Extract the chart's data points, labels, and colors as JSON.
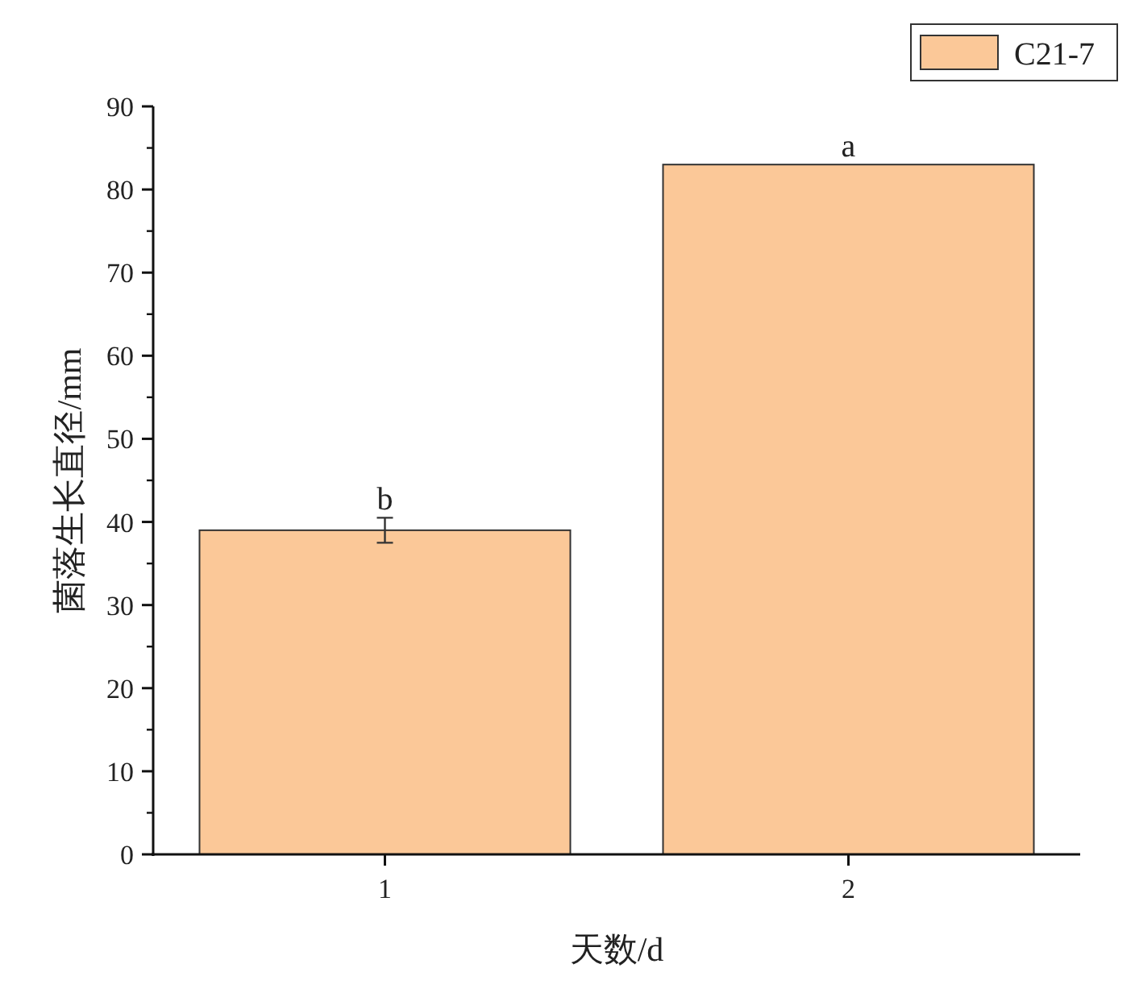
{
  "chart_data": {
    "type": "bar",
    "xlabel": "天数/d",
    "ylabel": "菌落生长直径/mm",
    "categories": [
      "1",
      "2"
    ],
    "series": [
      {
        "name": "C21-7",
        "color": "#fbc898",
        "values": [
          39,
          83
        ],
        "errors": [
          1.5,
          null
        ]
      }
    ],
    "ylim": [
      0,
      90
    ],
    "yticks": [
      0,
      10,
      20,
      30,
      40,
      50,
      60,
      70,
      80,
      90
    ],
    "annotations": [
      {
        "text": "b",
        "x": "1",
        "y": 40.5
      },
      {
        "text": "a",
        "x": "2",
        "y": 83
      }
    ],
    "legend": "top right",
    "grid": false
  }
}
